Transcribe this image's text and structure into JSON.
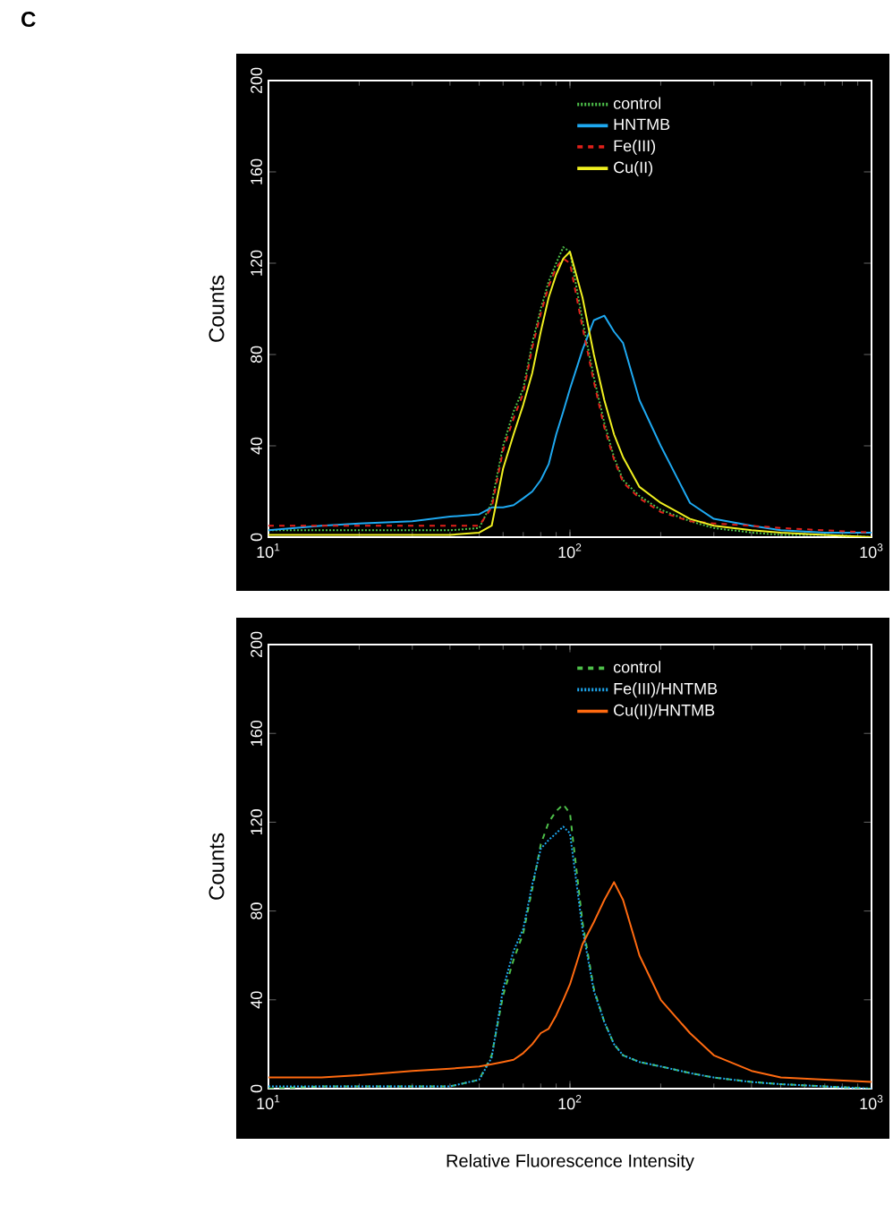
{
  "chart_data": [
    {
      "type": "line",
      "annotations": [
        "C"
      ],
      "ylabel": "Counts",
      "log": "x",
      "legend": "top right",
      "xlim": [
        10,
        1000
      ],
      "ylim": [
        0,
        200
      ],
      "xticks": [
        {
          "value": 10,
          "label": "10$^{1}$"
        },
        {
          "value": 100,
          "label": "10$^{2}$"
        },
        {
          "value": 1000,
          "label": "10$^{3}$"
        }
      ],
      "yticks": [
        0,
        40,
        80,
        120,
        160,
        200
      ],
      "x": [
        10,
        15,
        20,
        30,
        40,
        50,
        55,
        60,
        65,
        70,
        75,
        80,
        85,
        90,
        95,
        100,
        110,
        120,
        130,
        140,
        150,
        170,
        200,
        250,
        300,
        400,
        500,
        700,
        1000
      ],
      "series": [
        {
          "name": "control",
          "color": "#4ec04a",
          "line_style": "dotted",
          "values": [
            3,
            3,
            3,
            3,
            3,
            4,
            15,
            40,
            55,
            65,
            85,
            100,
            112,
            120,
            127,
            125,
            95,
            70,
            50,
            35,
            25,
            18,
            12,
            7,
            4,
            2,
            1,
            1,
            0
          ]
        },
        {
          "name": "HNTMB",
          "color": "#1ea8f0",
          "line_style": "solid",
          "values": [
            3,
            5,
            6,
            7,
            9,
            10,
            13,
            13,
            14,
            17,
            20,
            25,
            32,
            45,
            55,
            65,
            82,
            95,
            97,
            90,
            85,
            60,
            40,
            15,
            8,
            5,
            3,
            2,
            2
          ]
        },
        {
          "name": "Fe(III)",
          "color": "#e0201a",
          "line_style": "dashed",
          "values": [
            5,
            5,
            5,
            5,
            5,
            5,
            13,
            38,
            52,
            63,
            83,
            98,
            110,
            118,
            122,
            120,
            92,
            68,
            48,
            34,
            24,
            17,
            11,
            7,
            6,
            5,
            4,
            3,
            2
          ]
        },
        {
          "name": "Cu(II)",
          "color": "#f0f020",
          "line_style": "solid",
          "values": [
            1,
            1,
            1,
            1,
            1,
            2,
            5,
            30,
            45,
            58,
            72,
            90,
            105,
            115,
            122,
            125,
            105,
            80,
            60,
            45,
            35,
            22,
            15,
            8,
            5,
            3,
            2,
            1,
            0
          ]
        }
      ]
    },
    {
      "type": "line",
      "ylabel": "Counts",
      "xlabel": "Relative Fluorescence Intensity",
      "log": "x",
      "legend": "top right",
      "xlim": [
        10,
        1000
      ],
      "ylim": [
        0,
        200
      ],
      "xticks": [
        {
          "value": 10,
          "label": "10$^{1}$"
        },
        {
          "value": 100,
          "label": "10$^{2}$"
        },
        {
          "value": 1000,
          "label": "10$^{3}$"
        }
      ],
      "yticks": [
        0,
        40,
        80,
        120,
        160,
        200
      ],
      "x": [
        10,
        15,
        20,
        30,
        40,
        50,
        55,
        60,
        65,
        70,
        75,
        80,
        85,
        90,
        95,
        100,
        110,
        120,
        130,
        140,
        150,
        170,
        200,
        250,
        300,
        400,
        500,
        700,
        1000
      ],
      "series": [
        {
          "name": "control",
          "color": "#4ec04a",
          "line_style": "dashed",
          "values": [
            0,
            1,
            1,
            1,
            1,
            4,
            15,
            42,
            58,
            70,
            90,
            110,
            120,
            125,
            128,
            124,
            75,
            45,
            30,
            20,
            15,
            12,
            10,
            7,
            5,
            3,
            2,
            1,
            0
          ]
        },
        {
          "name": "Fe(III)/HNTMB",
          "color": "#1ea8f0",
          "line_style": "dotted",
          "values": [
            1,
            1,
            1,
            1,
            1,
            4,
            14,
            45,
            62,
            72,
            92,
            108,
            112,
            115,
            118,
            115,
            72,
            44,
            30,
            20,
            15,
            12,
            10,
            7,
            5,
            3,
            2,
            1,
            0
          ]
        },
        {
          "name": "Cu(II)/HNTMB",
          "color": "#ff6a10",
          "line_style": "solid",
          "values": [
            5,
            5,
            6,
            8,
            9,
            10,
            11,
            12,
            13,
            16,
            20,
            25,
            27,
            33,
            40,
            47,
            65,
            75,
            85,
            93,
            85,
            60,
            40,
            25,
            15,
            8,
            5,
            4,
            3
          ]
        }
      ]
    }
  ]
}
